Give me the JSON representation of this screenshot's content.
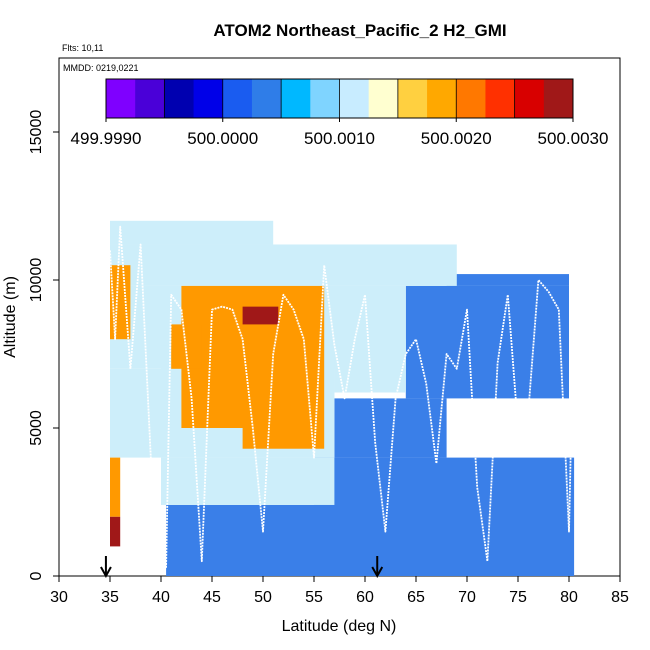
{
  "chart_data": {
    "type": "heatmap",
    "title": "ATOM2 Northeast_Pacific_2 H2_GMI",
    "flights_label": "Flts: 10,11",
    "date_label": "MMDD: 0219,0221",
    "xlabel": "Latitude (deg N)",
    "ylabel": "Altitude (m)",
    "xlim": [
      30,
      85
    ],
    "ylim": [
      0,
      17500
    ],
    "x_ticks": [
      "30",
      "35",
      "40",
      "45",
      "50",
      "55",
      "60",
      "65",
      "70",
      "75",
      "80",
      "85"
    ],
    "y_ticks": [
      "0",
      "5000",
      "10000",
      "15000"
    ],
    "colorbar": {
      "colors": [
        "#7f00ff",
        "#4a00d8",
        "#0000b0",
        "#0000e8",
        "#1a5cf0",
        "#2f7de8",
        "#00b8ff",
        "#7fd4ff",
        "#c8ecff",
        "#ffffd0",
        "#ffd040",
        "#ffa800",
        "#ff7800",
        "#ff3000",
        "#d80000",
        "#a01818"
      ],
      "boundaries": [
        499.999,
        500.003
      ],
      "tick_labels": [
        "499.9990",
        "500.0000",
        "500.0010",
        "500.0020",
        "500.0030"
      ]
    },
    "cell_colors": {
      "blue": "#3a7fe8",
      "light": "#cdeefa",
      "orange": "#ff9900",
      "darkred": "#a01818"
    },
    "background_cells": [
      {
        "lat": [
          40.5,
          70
        ],
        "alt": [
          0,
          2400
        ],
        "color": "blue"
      },
      {
        "lat": [
          55,
          80.5
        ],
        "alt": [
          0,
          4000
        ],
        "color": "blue"
      },
      {
        "lat": [
          57,
          68
        ],
        "alt": [
          4000,
          6000
        ],
        "color": "blue"
      },
      {
        "lat": [
          64,
          80
        ],
        "alt": [
          6000,
          9800
        ],
        "color": "blue"
      },
      {
        "lat": [
          68,
          80
        ],
        "alt": [
          9800,
          10200
        ],
        "color": "blue"
      },
      {
        "lat": [
          40,
          57
        ],
        "alt": [
          2400,
          4000
        ],
        "color": "light"
      },
      {
        "lat": [
          35,
          57
        ],
        "alt": [
          4000,
          5000
        ],
        "color": "light"
      },
      {
        "lat": [
          35,
          57
        ],
        "alt": [
          5000,
          7000
        ],
        "color": "light"
      },
      {
        "lat": [
          35,
          64
        ],
        "alt": [
          7000,
          9800
        ],
        "color": "light"
      },
      {
        "lat": [
          35,
          69
        ],
        "alt": [
          9800,
          11200
        ],
        "color": "light"
      },
      {
        "lat": [
          35,
          51
        ],
        "alt": [
          11200,
          12000
        ],
        "color": "light"
      },
      {
        "lat": [
          57,
          64
        ],
        "alt": [
          6200,
          8000
        ],
        "color": "light"
      },
      {
        "lat": [
          40,
          57
        ],
        "alt": [
          5000,
          7800
        ],
        "color": "light"
      },
      {
        "lat": [
          42,
          56
        ],
        "alt": [
          5000,
          9800
        ],
        "color": "orange"
      },
      {
        "lat": [
          48,
          56
        ],
        "alt": [
          4300,
          5000
        ],
        "color": "orange"
      },
      {
        "lat": [
          35,
          37
        ],
        "alt": [
          8000,
          10500
        ],
        "color": "orange"
      },
      {
        "lat": [
          41,
          44
        ],
        "alt": [
          7000,
          8500
        ],
        "color": "orange"
      },
      {
        "lat": [
          35,
          36
        ],
        "alt": [
          2000,
          4000
        ],
        "color": "orange"
      },
      {
        "lat": [
          35,
          36
        ],
        "alt": [
          1000,
          2000
        ],
        "color": "darkred"
      },
      {
        "lat": [
          48,
          51.5
        ],
        "alt": [
          8500,
          9100
        ],
        "color": "darkred"
      }
    ],
    "flight_track": {
      "lat": [
        35,
        35.5,
        36,
        37,
        38,
        39,
        40,
        40.5,
        41,
        42,
        43,
        44,
        45,
        46,
        47,
        48,
        49,
        50,
        51,
        52,
        53,
        54,
        55,
        56,
        57,
        58,
        59,
        60,
        61,
        62,
        63,
        64,
        65,
        66,
        67,
        68,
        69,
        70,
        71,
        72,
        73,
        74,
        75,
        76,
        77,
        78,
        79,
        80,
        80.5
      ],
      "alt": [
        11000,
        8000,
        11800,
        7000,
        11200,
        4000,
        2000,
        300,
        9500,
        9000,
        6000,
        500,
        9000,
        9100,
        9000,
        8000,
        5000,
        1500,
        7500,
        9500,
        9000,
        8000,
        4000,
        10500,
        7800,
        6000,
        8000,
        9500,
        4500,
        1500,
        6000,
        7500,
        8000,
        6500,
        3800,
        7500,
        7000,
        9000,
        3000,
        500,
        7200,
        9500,
        5000,
        5500,
        10000,
        9600,
        9000,
        1500,
        9500
      ]
    },
    "arrows_lat": [
      34.6,
      61.2
    ]
  }
}
